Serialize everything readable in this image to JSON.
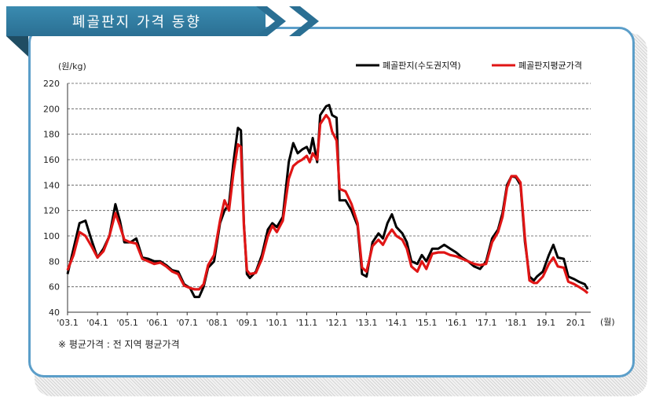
{
  "banner": {
    "title": "폐골판지 가격 동향"
  },
  "footnote": "※ 평균가격 : 전 지역 평균가격",
  "colors": {
    "banner": "#2e7ba3",
    "frame": "#5b9ec9",
    "series_capital": "#000000",
    "series_average": "#e01515"
  },
  "chart_data": {
    "type": "line",
    "ylabel": "(원/kg)",
    "x_unit_label": "(월)",
    "ylim": [
      40,
      220
    ],
    "y_ticks": [
      40,
      60,
      80,
      100,
      120,
      140,
      160,
      180,
      200,
      220
    ],
    "x_tick_labels": [
      "'03.1",
      "'04.1",
      "'05.1",
      "'06.1",
      "'07.1",
      "'08.1",
      "'09.1",
      "'10.1",
      "'11.1",
      "'12.1",
      "'13.1",
      "'14.1",
      "'15.1",
      "'16.1",
      "'17.1",
      "'18.1",
      "19.1",
      "20.1"
    ],
    "grid": true,
    "legend_position": "top-right",
    "series": [
      {
        "name": "폐골판지(수도권지역)",
        "color": "#000000",
        "points": [
          [
            2003.0,
            70
          ],
          [
            2003.2,
            90
          ],
          [
            2003.4,
            110
          ],
          [
            2003.6,
            112
          ],
          [
            2003.8,
            97
          ],
          [
            2004.0,
            83
          ],
          [
            2004.2,
            90
          ],
          [
            2004.4,
            100
          ],
          [
            2004.6,
            125
          ],
          [
            2004.75,
            112
          ],
          [
            2004.9,
            95
          ],
          [
            2005.1,
            95
          ],
          [
            2005.3,
            98
          ],
          [
            2005.5,
            83
          ],
          [
            2005.7,
            82
          ],
          [
            2005.9,
            80
          ],
          [
            2006.1,
            80
          ],
          [
            2006.3,
            77
          ],
          [
            2006.5,
            73
          ],
          [
            2006.7,
            72
          ],
          [
            2006.9,
            62
          ],
          [
            2007.1,
            59
          ],
          [
            2007.25,
            52
          ],
          [
            2007.4,
            52
          ],
          [
            2007.55,
            60
          ],
          [
            2007.7,
            75
          ],
          [
            2007.9,
            80
          ],
          [
            2008.1,
            110
          ],
          [
            2008.25,
            120
          ],
          [
            2008.4,
            125
          ],
          [
            2008.55,
            158
          ],
          [
            2008.7,
            185
          ],
          [
            2008.8,
            183
          ],
          [
            2008.9,
            110
          ],
          [
            2009.0,
            70
          ],
          [
            2009.1,
            67
          ],
          [
            2009.3,
            72
          ],
          [
            2009.5,
            85
          ],
          [
            2009.7,
            105
          ],
          [
            2009.85,
            110
          ],
          [
            2010.0,
            107
          ],
          [
            2010.2,
            115
          ],
          [
            2010.4,
            158
          ],
          [
            2010.55,
            173
          ],
          [
            2010.7,
            165
          ],
          [
            2010.85,
            168
          ],
          [
            2011.0,
            170
          ],
          [
            2011.1,
            165
          ],
          [
            2011.2,
            177
          ],
          [
            2011.35,
            158
          ],
          [
            2011.45,
            195
          ],
          [
            2011.65,
            202
          ],
          [
            2011.75,
            203
          ],
          [
            2011.85,
            195
          ],
          [
            2012.0,
            193
          ],
          [
            2012.1,
            128
          ],
          [
            2012.3,
            128
          ],
          [
            2012.5,
            120
          ],
          [
            2012.7,
            108
          ],
          [
            2012.85,
            70
          ],
          [
            2013.0,
            68
          ],
          [
            2013.2,
            95
          ],
          [
            2013.4,
            102
          ],
          [
            2013.55,
            98
          ],
          [
            2013.7,
            110
          ],
          [
            2013.85,
            117
          ],
          [
            2014.0,
            107
          ],
          [
            2014.2,
            102
          ],
          [
            2014.35,
            95
          ],
          [
            2014.5,
            80
          ],
          [
            2014.7,
            78
          ],
          [
            2014.85,
            85
          ],
          [
            2015.0,
            80
          ],
          [
            2015.2,
            90
          ],
          [
            2015.4,
            90
          ],
          [
            2015.6,
            93
          ],
          [
            2015.8,
            90
          ],
          [
            2016.0,
            87
          ],
          [
            2016.2,
            83
          ],
          [
            2016.4,
            80
          ],
          [
            2016.6,
            76
          ],
          [
            2016.8,
            74
          ],
          [
            2017.0,
            80
          ],
          [
            2017.2,
            98
          ],
          [
            2017.4,
            105
          ],
          [
            2017.55,
            118
          ],
          [
            2017.7,
            140
          ],
          [
            2017.85,
            147
          ],
          [
            2018.0,
            146
          ],
          [
            2018.15,
            140
          ],
          [
            2018.3,
            95
          ],
          [
            2018.45,
            68
          ],
          [
            2018.6,
            65
          ],
          [
            2018.7,
            68
          ],
          [
            2018.9,
            72
          ],
          [
            2019.1,
            85
          ],
          [
            2019.25,
            93
          ],
          [
            2019.4,
            83
          ],
          [
            2019.6,
            82
          ],
          [
            2019.75,
            68
          ],
          [
            2019.95,
            66
          ],
          [
            2020.1,
            64
          ],
          [
            2020.3,
            62
          ],
          [
            2020.4,
            58
          ]
        ]
      },
      {
        "name": "폐골판지평균가격",
        "color": "#e01515",
        "points": [
          [
            2003.0,
            73
          ],
          [
            2003.2,
            85
          ],
          [
            2003.4,
            103
          ],
          [
            2003.6,
            100
          ],
          [
            2003.8,
            92
          ],
          [
            2004.0,
            83
          ],
          [
            2004.2,
            88
          ],
          [
            2004.4,
            100
          ],
          [
            2004.6,
            118
          ],
          [
            2004.75,
            108
          ],
          [
            2004.9,
            97
          ],
          [
            2005.1,
            95
          ],
          [
            2005.3,
            94
          ],
          [
            2005.5,
            82
          ],
          [
            2005.7,
            80
          ],
          [
            2005.9,
            78
          ],
          [
            2006.1,
            79
          ],
          [
            2006.3,
            76
          ],
          [
            2006.5,
            72
          ],
          [
            2006.7,
            70
          ],
          [
            2006.9,
            61
          ],
          [
            2007.1,
            59
          ],
          [
            2007.25,
            58
          ],
          [
            2007.4,
            58
          ],
          [
            2007.55,
            62
          ],
          [
            2007.7,
            77
          ],
          [
            2007.9,
            85
          ],
          [
            2008.1,
            112
          ],
          [
            2008.25,
            128
          ],
          [
            2008.4,
            120
          ],
          [
            2008.55,
            150
          ],
          [
            2008.7,
            172
          ],
          [
            2008.8,
            170
          ],
          [
            2008.9,
            108
          ],
          [
            2009.0,
            73
          ],
          [
            2009.1,
            70
          ],
          [
            2009.3,
            71
          ],
          [
            2009.5,
            82
          ],
          [
            2009.7,
            100
          ],
          [
            2009.85,
            108
          ],
          [
            2010.0,
            103
          ],
          [
            2010.2,
            112
          ],
          [
            2010.4,
            145
          ],
          [
            2010.55,
            155
          ],
          [
            2010.7,
            158
          ],
          [
            2010.85,
            160
          ],
          [
            2011.0,
            163
          ],
          [
            2011.1,
            158
          ],
          [
            2011.2,
            165
          ],
          [
            2011.35,
            160
          ],
          [
            2011.45,
            188
          ],
          [
            2011.65,
            195
          ],
          [
            2011.75,
            192
          ],
          [
            2011.85,
            182
          ],
          [
            2012.0,
            175
          ],
          [
            2012.1,
            137
          ],
          [
            2012.3,
            135
          ],
          [
            2012.5,
            125
          ],
          [
            2012.7,
            110
          ],
          [
            2012.85,
            75
          ],
          [
            2013.0,
            72
          ],
          [
            2013.2,
            92
          ],
          [
            2013.4,
            97
          ],
          [
            2013.55,
            93
          ],
          [
            2013.7,
            100
          ],
          [
            2013.85,
            105
          ],
          [
            2014.0,
            100
          ],
          [
            2014.2,
            97
          ],
          [
            2014.35,
            90
          ],
          [
            2014.5,
            76
          ],
          [
            2014.7,
            72
          ],
          [
            2014.85,
            80
          ],
          [
            2015.0,
            74
          ],
          [
            2015.2,
            86
          ],
          [
            2015.4,
            87
          ],
          [
            2015.6,
            87
          ],
          [
            2015.8,
            85
          ],
          [
            2016.0,
            84
          ],
          [
            2016.2,
            82
          ],
          [
            2016.4,
            80
          ],
          [
            2016.6,
            78
          ],
          [
            2016.8,
            77
          ],
          [
            2017.0,
            78
          ],
          [
            2017.2,
            95
          ],
          [
            2017.4,
            103
          ],
          [
            2017.55,
            115
          ],
          [
            2017.7,
            138
          ],
          [
            2017.85,
            147
          ],
          [
            2018.0,
            147
          ],
          [
            2018.15,
            142
          ],
          [
            2018.3,
            98
          ],
          [
            2018.45,
            65
          ],
          [
            2018.6,
            63
          ],
          [
            2018.7,
            63
          ],
          [
            2018.9,
            68
          ],
          [
            2019.1,
            78
          ],
          [
            2019.25,
            83
          ],
          [
            2019.4,
            76
          ],
          [
            2019.6,
            75
          ],
          [
            2019.75,
            64
          ],
          [
            2019.95,
            62
          ],
          [
            2020.1,
            60
          ],
          [
            2020.3,
            57
          ],
          [
            2020.4,
            55
          ]
        ]
      }
    ]
  }
}
